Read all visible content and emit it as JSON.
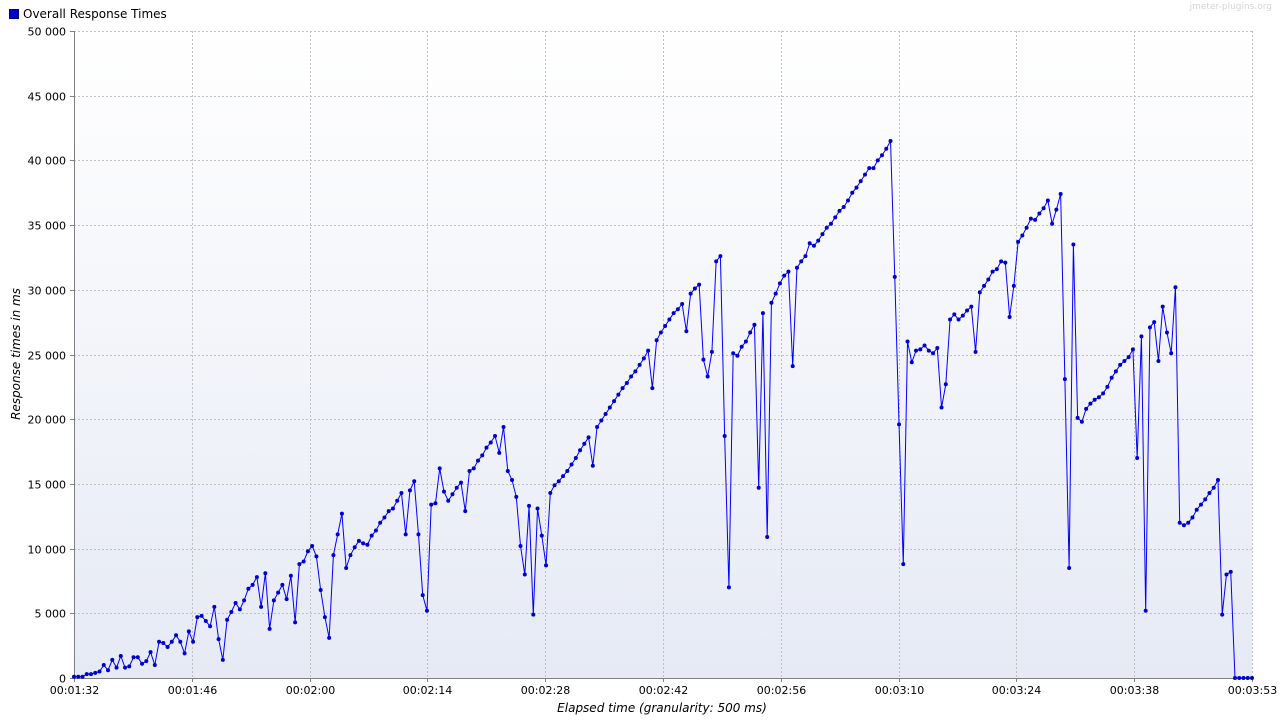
{
  "watermark": "jmeter-plugins.org",
  "legend": {
    "label": "Overall Response Times"
  },
  "colors": {
    "series": "#0000ff",
    "swatch": "#0000cc",
    "plot_bg_top": "#ffffff",
    "plot_bg_bottom": "#e6eaf5",
    "grid": "#c0c0c0"
  },
  "chart_data": {
    "type": "line",
    "title": "",
    "xlabel": "Elapsed time (granularity: 500 ms)",
    "ylabel": "Response times in ms",
    "grid": true,
    "legend_position": "top-left",
    "xlim": [
      "00:01:32",
      "00:03:53"
    ],
    "ylim": [
      0,
      50000
    ],
    "x_tick_labels": [
      "00:01:32",
      "00:01:46",
      "00:02:00",
      "00:02:14",
      "00:02:28",
      "00:02:42",
      "00:02:56",
      "00:03:10",
      "00:03:24",
      "00:03:38",
      "00:03:53"
    ],
    "y_tick_labels": [
      "0",
      "5 000",
      "10 000",
      "15 000",
      "20 000",
      "25 000",
      "30 000",
      "35 000",
      "40 000",
      "45 000",
      "50 000"
    ],
    "y_ticks": [
      0,
      5000,
      10000,
      15000,
      20000,
      25000,
      30000,
      35000,
      40000,
      45000,
      50000
    ],
    "series": [
      {
        "name": "Overall Response Times",
        "x_start": "00:01:32",
        "step": "500 ms",
        "values": [
          100,
          100,
          100,
          300,
          300,
          400,
          500,
          1000,
          600,
          1400,
          800,
          1700,
          800,
          900,
          1600,
          1600,
          1100,
          1300,
          2000,
          1000,
          2800,
          2700,
          2400,
          2800,
          3300,
          2800,
          1900,
          3600,
          2800,
          4700,
          4800,
          4400,
          4000,
          5500,
          3000,
          1400,
          4500,
          5100,
          5800,
          5300,
          6000,
          6900,
          7200,
          7800,
          5500,
          8100,
          3800,
          6000,
          6600,
          7200,
          6100,
          7900,
          4300,
          8800,
          9000,
          9800,
          10200,
          9400,
          6800,
          4700,
          3100,
          9500,
          11100,
          12700,
          8500,
          9500,
          10100,
          10600,
          10400,
          10300,
          11000,
          11400,
          12000,
          12400,
          12900,
          13100,
          13700,
          14300,
          11100,
          14500,
          15200,
          11100,
          6400,
          5200,
          13400,
          13500,
          16200,
          14400,
          13700,
          14200,
          14700,
          15100,
          12900,
          16000,
          16200,
          16800,
          17200,
          17800,
          18200,
          18700,
          17400,
          19400,
          16000,
          15300,
          14000,
          10200,
          8000,
          13300,
          4900,
          13100,
          11000,
          8700,
          14300,
          14900,
          15200,
          15600,
          16000,
          16500,
          17000,
          17600,
          18100,
          18600,
          16400,
          19400,
          19900,
          20400,
          20900,
          21400,
          21900,
          22400,
          22800,
          23300,
          23700,
          24200,
          24700,
          25300,
          22400,
          26100,
          26700,
          27200,
          27700,
          28200,
          28500,
          28900,
          26800,
          29700,
          30100,
          30400,
          24600,
          23300,
          25200,
          32200,
          32600,
          18700,
          7000,
          25100,
          24900,
          25600,
          26000,
          26700,
          27300,
          14700,
          28200,
          10900,
          29000,
          29700,
          30500,
          31100,
          31400,
          24100,
          31700,
          32200,
          32600,
          33600,
          33400,
          33800,
          34300,
          34800,
          35100,
          35600,
          36100,
          36400,
          36900,
          37500,
          37900,
          38400,
          38900,
          39400,
          39400,
          40000,
          40400,
          40900,
          41500,
          31000,
          19600,
          8800,
          26000,
          24400,
          25300,
          25400,
          25700,
          25300,
          25100,
          25500,
          20900,
          22700,
          27700,
          28100,
          27700,
          28000,
          28400,
          28700,
          25200,
          29800,
          30300,
          30800,
          31400,
          31600,
          32200,
          32100,
          27900,
          30300,
          33700,
          34200,
          34800,
          35500,
          35400,
          35900,
          36300,
          36900,
          35100,
          36200,
          37400,
          23100,
          8500,
          33500,
          20100,
          19800,
          20800,
          21200,
          21500,
          21700,
          22000,
          22500,
          23200,
          23700,
          24200,
          24500,
          24800,
          25400,
          17000,
          26400,
          5200,
          27100,
          27500,
          24500,
          28700,
          26700,
          25100,
          30200,
          12000,
          11800,
          12000,
          12400,
          13000,
          13400,
          13800,
          14300,
          14700,
          15300,
          4900,
          8000,
          8200,
          0,
          0,
          0,
          0,
          0
        ]
      }
    ]
  }
}
